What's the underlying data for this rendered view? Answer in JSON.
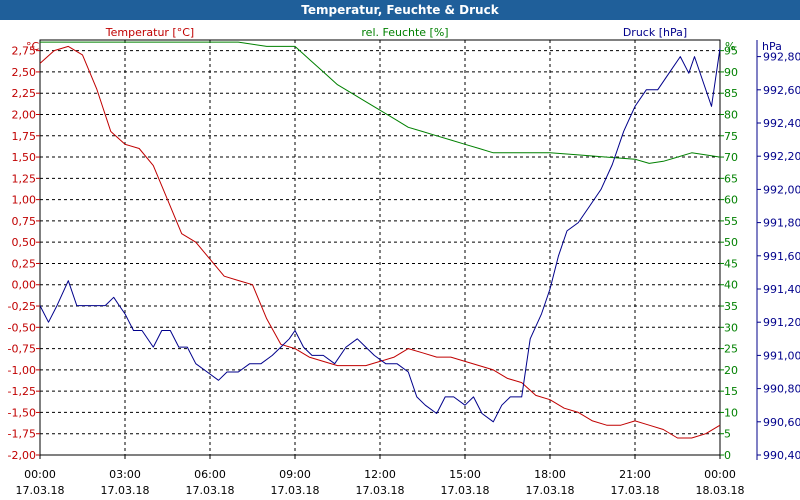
{
  "window": {
    "title": "Temperatur, Feuchte & Druck"
  },
  "chart_data": {
    "type": "line",
    "title": "Temperatur, Feuchte & Druck",
    "grid": true,
    "colors": {
      "temperature": "#c00000",
      "humidity": "#008000",
      "pressure": "#00008b"
    },
    "x_ticks": [
      {
        "time": "00:00",
        "date": "17.03.18"
      },
      {
        "time": "03:00",
        "date": "17.03.18"
      },
      {
        "time": "06:00",
        "date": "17.03.18"
      },
      {
        "time": "09:00",
        "date": "17.03.18"
      },
      {
        "time": "12:00",
        "date": "17.03.18"
      },
      {
        "time": "15:00",
        "date": "17.03.18"
      },
      {
        "time": "18:00",
        "date": "17.03.18"
      },
      {
        "time": "21:00",
        "date": "17.03.18"
      },
      {
        "time": "00:00",
        "date": "18.03.18"
      }
    ],
    "axes": {
      "temperature": {
        "label": "Temperatur [°C]",
        "unit": "°C",
        "range": [
          -2.0,
          2.875
        ],
        "ticks": [
          "2,75",
          "2,50",
          "2,25",
          "2,00",
          "1,75",
          "1,50",
          "1,25",
          "1,00",
          "0,75",
          "0,50",
          "0,25",
          "0,00",
          "-0,25",
          "-0,50",
          "-0,75",
          "-1,00",
          "-1,25",
          "-1,50",
          "-1,75",
          "-2,00"
        ]
      },
      "humidity": {
        "label": "rel. Feuchte [%]",
        "unit": "%",
        "range": [
          0,
          97.5
        ],
        "ticks": [
          "95",
          "90",
          "85",
          "80",
          "75",
          "70",
          "65",
          "60",
          "55",
          "50",
          "45",
          "40",
          "35",
          "30",
          "25",
          "20",
          "15",
          "10",
          "5",
          "0"
        ]
      },
      "pressure": {
        "label": "Druck [hPa]",
        "unit": "hPa",
        "range": [
          990.4,
          992.9
        ],
        "ticks": [
          "992,80",
          "992,60",
          "992,40",
          "992,20",
          "992,00",
          "991,80",
          "991,60",
          "991,40",
          "991,20",
          "991,00",
          "990,80",
          "990,60",
          "990,40"
        ]
      }
    },
    "series": [
      {
        "name": "Temperatur [°C]",
        "key": "temperature",
        "points": [
          [
            0,
            2.6
          ],
          [
            0.5,
            2.75
          ],
          [
            1,
            2.8
          ],
          [
            1.5,
            2.7
          ],
          [
            2,
            2.3
          ],
          [
            2.5,
            1.8
          ],
          [
            3,
            1.65
          ],
          [
            3.5,
            1.6
          ],
          [
            4,
            1.4
          ],
          [
            4.5,
            1.0
          ],
          [
            5,
            0.6
          ],
          [
            5.5,
            0.5
          ],
          [
            6,
            0.3
          ],
          [
            6.5,
            0.1
          ],
          [
            7,
            0.05
          ],
          [
            7.5,
            0.0
          ],
          [
            8,
            -0.4
          ],
          [
            8.5,
            -0.7
          ],
          [
            9,
            -0.75
          ],
          [
            9.5,
            -0.85
          ],
          [
            10,
            -0.9
          ],
          [
            10.5,
            -0.95
          ],
          [
            11,
            -0.95
          ],
          [
            11.5,
            -0.95
          ],
          [
            12,
            -0.9
          ],
          [
            12.5,
            -0.85
          ],
          [
            13,
            -0.75
          ],
          [
            13.5,
            -0.8
          ],
          [
            14,
            -0.85
          ],
          [
            14.5,
            -0.85
          ],
          [
            15,
            -0.9
          ],
          [
            15.5,
            -0.95
          ],
          [
            16,
            -1.0
          ],
          [
            16.5,
            -1.1
          ],
          [
            17,
            -1.15
          ],
          [
            17.5,
            -1.3
          ],
          [
            18,
            -1.35
          ],
          [
            18.5,
            -1.45
          ],
          [
            19,
            -1.5
          ],
          [
            19.5,
            -1.6
          ],
          [
            20,
            -1.65
          ],
          [
            20.5,
            -1.65
          ],
          [
            21,
            -1.6
          ],
          [
            21.5,
            -1.65
          ],
          [
            22,
            -1.7
          ],
          [
            22.5,
            -1.8
          ],
          [
            23,
            -1.8
          ],
          [
            23.5,
            -1.75
          ],
          [
            24,
            -1.65
          ]
        ]
      },
      {
        "name": "rel. Feuchte [%]",
        "key": "humidity",
        "points": [
          [
            0,
            97
          ],
          [
            3,
            97
          ],
          [
            5,
            97
          ],
          [
            6,
            97
          ],
          [
            7,
            97
          ],
          [
            8,
            96
          ],
          [
            9,
            96
          ],
          [
            9.5,
            93
          ],
          [
            10,
            90
          ],
          [
            10.5,
            87
          ],
          [
            11,
            85
          ],
          [
            11.5,
            83
          ],
          [
            12,
            81
          ],
          [
            12.5,
            79
          ],
          [
            13,
            77
          ],
          [
            13.5,
            76
          ],
          [
            14,
            75
          ],
          [
            14.5,
            74
          ],
          [
            15,
            73
          ],
          [
            15.5,
            72
          ],
          [
            16,
            71
          ],
          [
            17,
            71
          ],
          [
            18,
            71
          ],
          [
            19,
            70.5
          ],
          [
            20,
            70
          ],
          [
            21,
            69.5
          ],
          [
            21.5,
            68.5
          ],
          [
            22,
            69
          ],
          [
            22.5,
            70
          ],
          [
            23,
            71
          ],
          [
            23.5,
            70.5
          ],
          [
            24,
            70
          ]
        ]
      },
      {
        "name": "Druck [hPa]",
        "key": "pressure",
        "points": [
          [
            0,
            991.3
          ],
          [
            0.3,
            991.2
          ],
          [
            0.6,
            991.3
          ],
          [
            1,
            991.45
          ],
          [
            1.3,
            991.3
          ],
          [
            1.7,
            991.3
          ],
          [
            2,
            991.3
          ],
          [
            2.3,
            991.3
          ],
          [
            2.6,
            991.35
          ],
          [
            2.8,
            991.3
          ],
          [
            3,
            991.25
          ],
          [
            3.3,
            991.15
          ],
          [
            3.6,
            991.15
          ],
          [
            4,
            991.05
          ],
          [
            4.3,
            991.15
          ],
          [
            4.6,
            991.15
          ],
          [
            4.9,
            991.05
          ],
          [
            5.2,
            991.05
          ],
          [
            5.5,
            990.95
          ],
          [
            5.9,
            990.9
          ],
          [
            6.3,
            990.85
          ],
          [
            6.6,
            990.9
          ],
          [
            7,
            990.9
          ],
          [
            7.4,
            990.95
          ],
          [
            7.8,
            990.95
          ],
          [
            8.2,
            991.0
          ],
          [
            8.5,
            991.05
          ],
          [
            8.8,
            991.1
          ],
          [
            9,
            991.15
          ],
          [
            9.3,
            991.05
          ],
          [
            9.6,
            991.0
          ],
          [
            10,
            991.0
          ],
          [
            10.4,
            990.95
          ],
          [
            10.8,
            991.05
          ],
          [
            11.2,
            991.1
          ],
          [
            11.5,
            991.05
          ],
          [
            11.8,
            991.0
          ],
          [
            12.2,
            990.95
          ],
          [
            12.6,
            990.95
          ],
          [
            13,
            990.9
          ],
          [
            13.3,
            990.75
          ],
          [
            13.6,
            990.7
          ],
          [
            14,
            990.65
          ],
          [
            14.3,
            990.75
          ],
          [
            14.6,
            990.75
          ],
          [
            15,
            990.7
          ],
          [
            15.3,
            990.75
          ],
          [
            15.6,
            990.65
          ],
          [
            16,
            990.6
          ],
          [
            16.3,
            990.7
          ],
          [
            16.6,
            990.75
          ],
          [
            17,
            990.75
          ],
          [
            17.3,
            991.1
          ],
          [
            17.7,
            991.25
          ],
          [
            18,
            991.4
          ],
          [
            18.3,
            991.6
          ],
          [
            18.6,
            991.75
          ],
          [
            19,
            991.8
          ],
          [
            19.4,
            991.9
          ],
          [
            19.8,
            992.0
          ],
          [
            20.2,
            992.15
          ],
          [
            20.6,
            992.35
          ],
          [
            21,
            992.5
          ],
          [
            21.4,
            992.6
          ],
          [
            21.8,
            992.6
          ],
          [
            22.2,
            992.7
          ],
          [
            22.6,
            992.8
          ],
          [
            22.9,
            992.7
          ],
          [
            23.1,
            992.8
          ],
          [
            23.4,
            992.65
          ],
          [
            23.7,
            992.5
          ],
          [
            24,
            992.85
          ]
        ]
      }
    ]
  }
}
